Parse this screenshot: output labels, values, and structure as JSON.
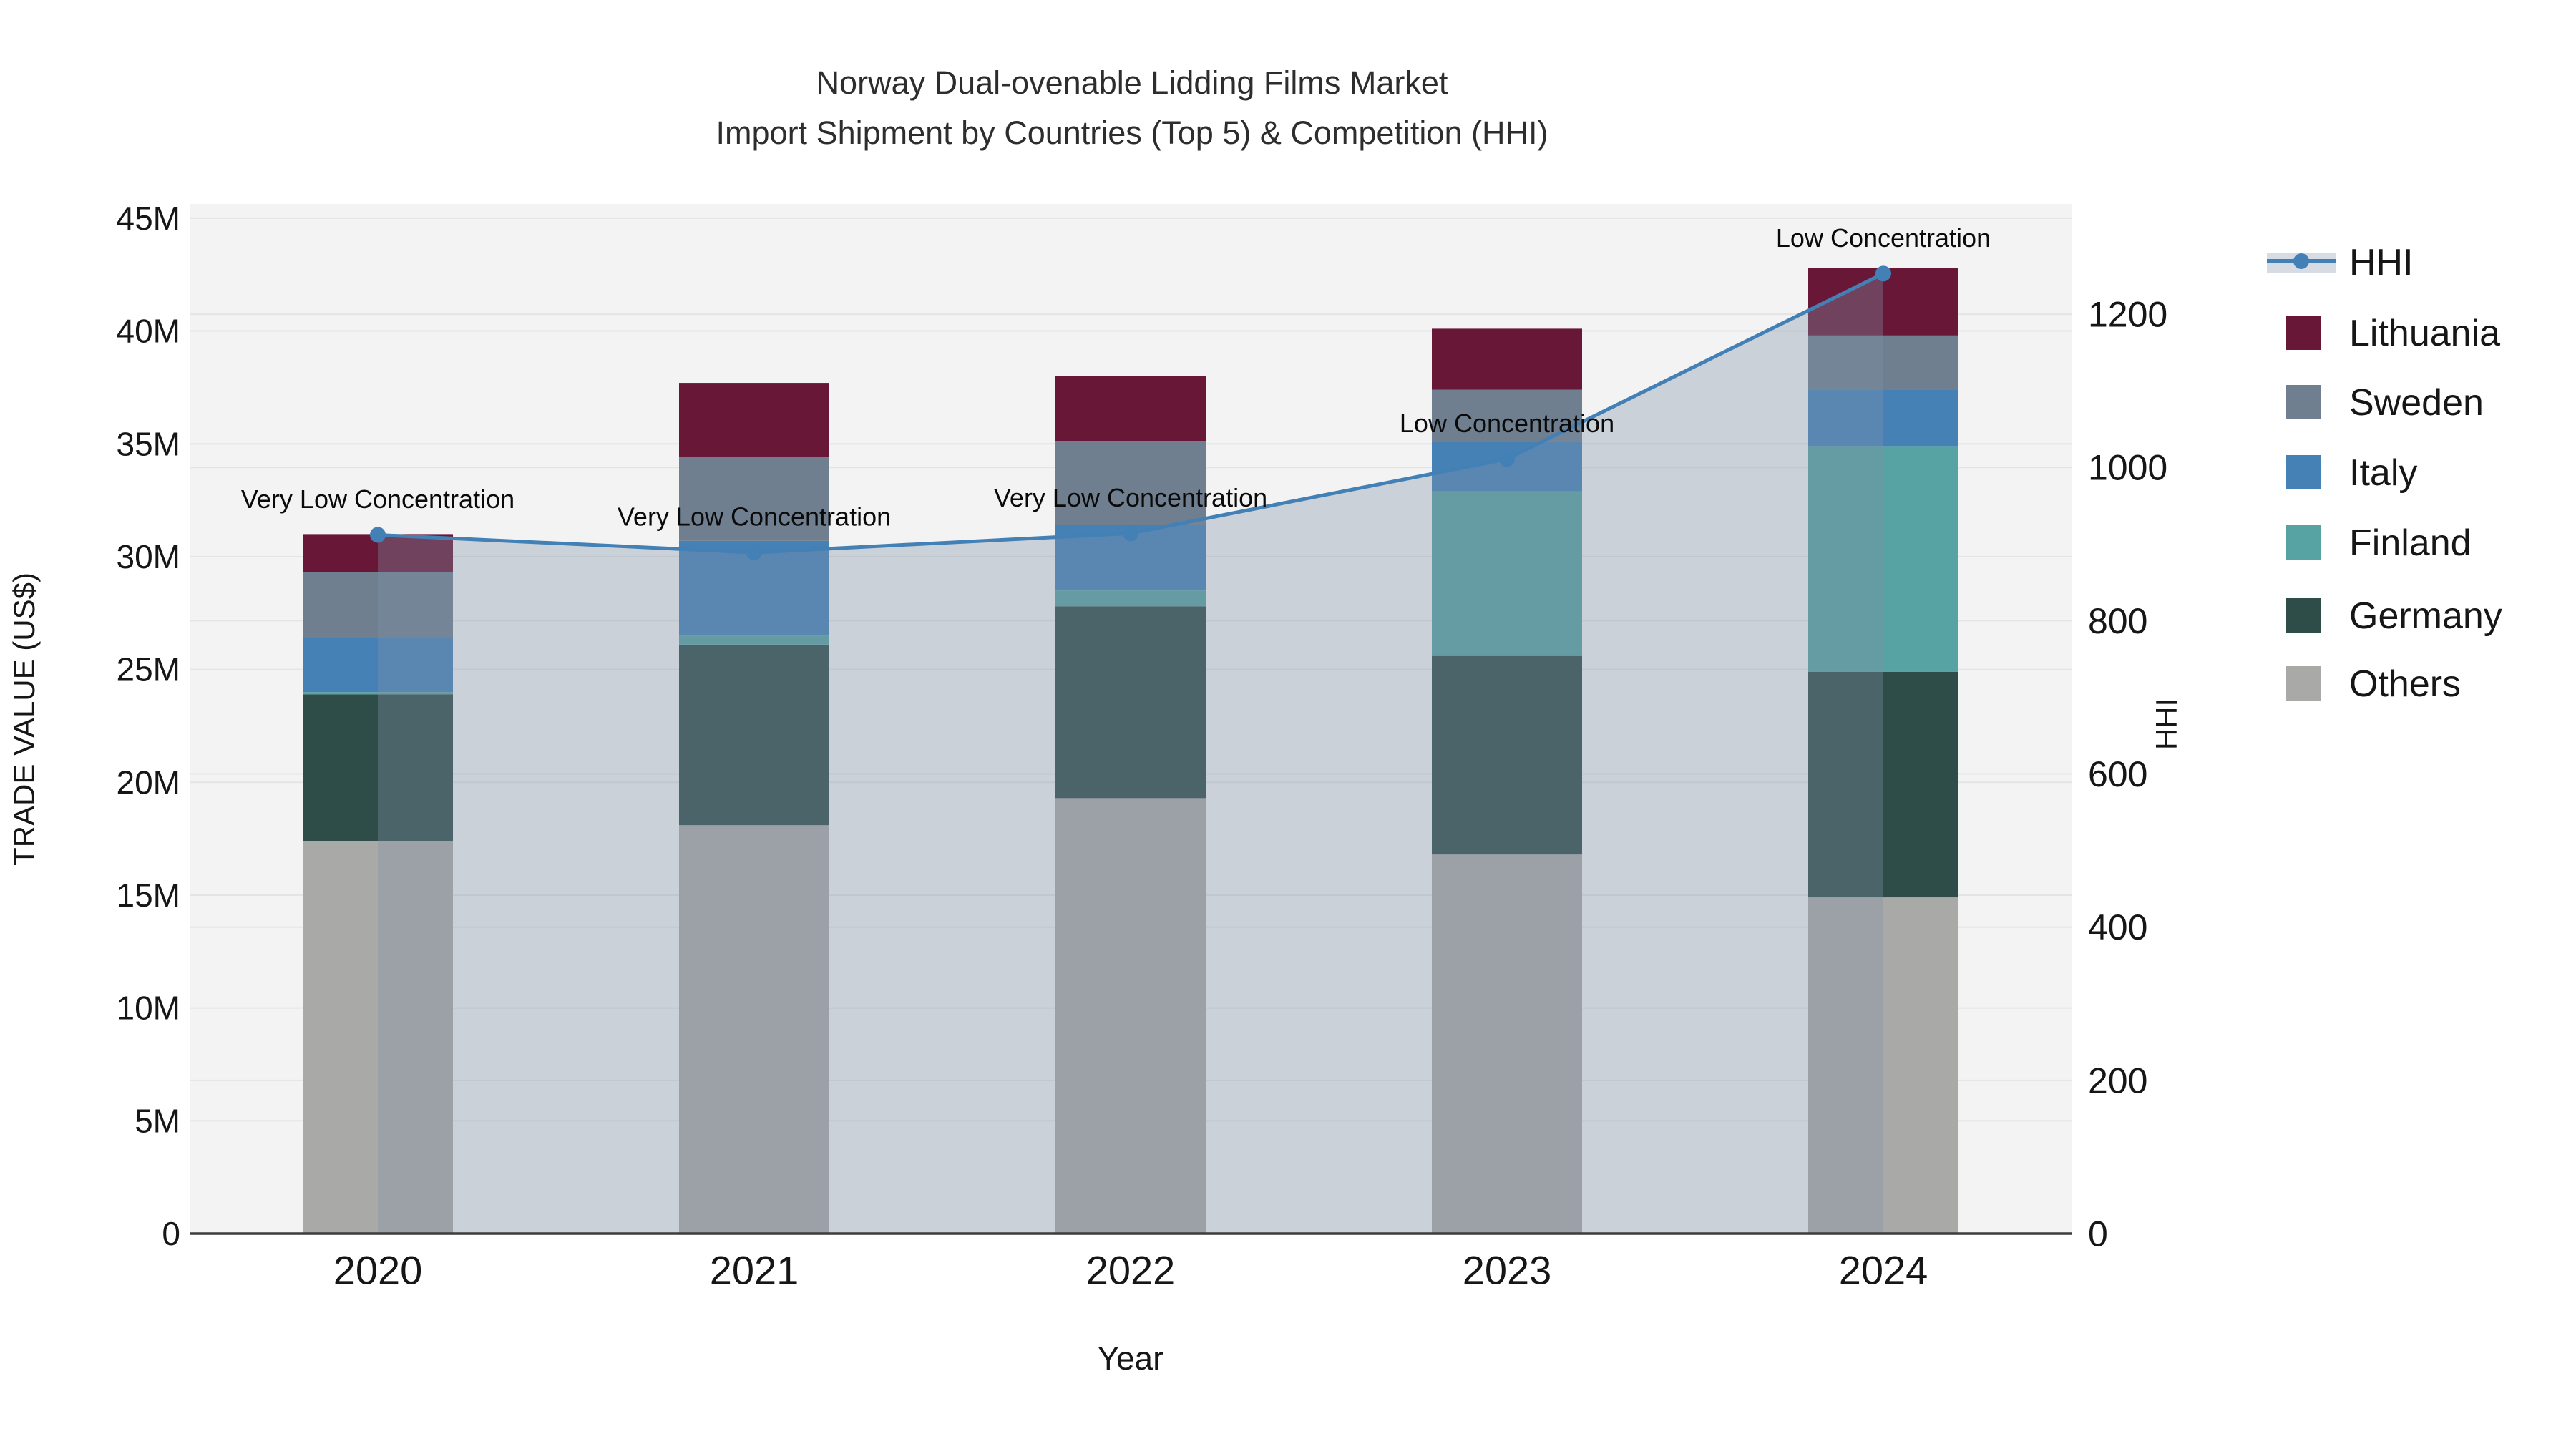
{
  "title": {
    "line1": "Norway Dual-ovenable Lidding Films Market",
    "line2": "Import Shipment by Countries (Top 5) & Competition (HHI)"
  },
  "legend": [
    {
      "label": "HHI",
      "type": "line",
      "color": "#4380B5",
      "band_color": "#d7dce4"
    },
    {
      "label": "Lithuania",
      "type": "square",
      "color": "#691737"
    },
    {
      "label": "Sweden",
      "type": "square",
      "color": "#6F7F8F"
    },
    {
      "label": "Italy",
      "type": "square",
      "color": "#4581B5"
    },
    {
      "label": "Finland",
      "type": "square",
      "color": "#57A2A2"
    },
    {
      "label": "Germany",
      "type": "square",
      "color": "#2E4C48"
    },
    {
      "label": "Others",
      "type": "square",
      "color": "#A9A9A7"
    }
  ],
  "chart_data": {
    "type": "bar",
    "subtype": "stacked-bar-with-line",
    "categories": [
      "2020",
      "2021",
      "2022",
      "2023",
      "2024"
    ],
    "bar_value_unit": "million US$",
    "series": [
      {
        "name": "Lithuania",
        "color": "#691737",
        "values": [
          1.7,
          3.3,
          2.9,
          2.7,
          3.0
        ]
      },
      {
        "name": "Sweden",
        "color": "#6F7F8F",
        "values": [
          2.9,
          3.7,
          3.7,
          2.3,
          2.4
        ]
      },
      {
        "name": "Italy",
        "color": "#4581B5",
        "values": [
          2.4,
          4.2,
          2.9,
          2.2,
          2.5
        ]
      },
      {
        "name": "Finland",
        "color": "#57A2A2",
        "values": [
          0.1,
          0.4,
          0.7,
          7.3,
          10.0
        ]
      },
      {
        "name": "Germany",
        "color": "#2E4C48",
        "values": [
          6.5,
          8.0,
          8.5,
          8.8,
          10.0
        ]
      },
      {
        "name": "Others",
        "color": "#A9A9A7",
        "values": [
          17.4,
          18.1,
          19.3,
          16.8,
          14.9
        ]
      }
    ],
    "bar_totals": [
      31.0,
      37.7,
      38.0,
      40.1,
      42.8
    ],
    "line_series": {
      "name": "HHI",
      "color": "#4380B5",
      "area_fill_color": "rgba(130,145,170,0.35)",
      "values": [
        912,
        889,
        914,
        1011,
        1253
      ]
    },
    "annotations": [
      {
        "year": "2020",
        "text": "Very Low Concentration"
      },
      {
        "year": "2021",
        "text": "Very Low Concentration"
      },
      {
        "year": "2022",
        "text": "Very Low Concentration"
      },
      {
        "year": "2023",
        "text": "Low Concentration"
      },
      {
        "year": "2024",
        "text": "Low Concentration"
      }
    ],
    "left_axis": {
      "title": "TRADE VALUE (US$)",
      "range_millions": [
        0,
        45.63
      ],
      "ticks": [
        {
          "value": 0,
          "label": "0"
        },
        {
          "value": 5,
          "label": "5M"
        },
        {
          "value": 10,
          "label": "10M"
        },
        {
          "value": 15,
          "label": "15M"
        },
        {
          "value": 20,
          "label": "20M"
        },
        {
          "value": 25,
          "label": "25M"
        },
        {
          "value": 30,
          "label": "30M"
        },
        {
          "value": 35,
          "label": "35M"
        },
        {
          "value": 40,
          "label": "40M"
        },
        {
          "value": 45,
          "label": "45M"
        }
      ]
    },
    "right_axis": {
      "title": "HHI",
      "range": [
        0,
        1343.9
      ],
      "ticks": [
        {
          "value": 0,
          "label": "0"
        },
        {
          "value": 200,
          "label": "200"
        },
        {
          "value": 400,
          "label": "400"
        },
        {
          "value": 600,
          "label": "600"
        },
        {
          "value": 800,
          "label": "800"
        },
        {
          "value": 1000,
          "label": "1000"
        },
        {
          "value": 1200,
          "label": "1200"
        }
      ]
    },
    "x_axis": {
      "title": "Year"
    },
    "plot_background": "#f3f3f3",
    "gridline_color": "#e4e4e4",
    "legend_position": "right"
  }
}
